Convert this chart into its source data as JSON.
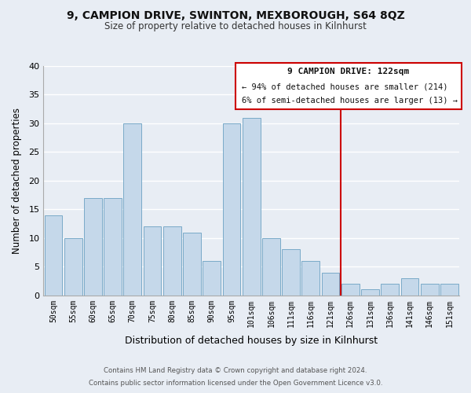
{
  "title1": "9, CAMPION DRIVE, SWINTON, MEXBOROUGH, S64 8QZ",
  "title2": "Size of property relative to detached houses in Kilnhurst",
  "xlabel": "Distribution of detached houses by size in Kilnhurst",
  "ylabel": "Number of detached properties",
  "categories": [
    "50sqm",
    "55sqm",
    "60sqm",
    "65sqm",
    "70sqm",
    "75sqm",
    "80sqm",
    "85sqm",
    "90sqm",
    "95sqm",
    "101sqm",
    "106sqm",
    "111sqm",
    "116sqm",
    "121sqm",
    "126sqm",
    "131sqm",
    "136sqm",
    "141sqm",
    "146sqm",
    "151sqm"
  ],
  "values": [
    14,
    10,
    17,
    17,
    30,
    12,
    12,
    11,
    6,
    30,
    31,
    10,
    8,
    6,
    4,
    2,
    1,
    2,
    3,
    2,
    2
  ],
  "bar_color": "#c5d8ea",
  "bar_edge_color": "#7aaac8",
  "grid_color": "#ffffff",
  "bg_color": "#e8edf4",
  "vline_x": 14,
  "vline_color": "#cc0000",
  "ylim": [
    0,
    40
  ],
  "yticks": [
    0,
    5,
    10,
    15,
    20,
    25,
    30,
    35,
    40
  ],
  "annotation_title": "9 CAMPION DRIVE: 122sqm",
  "annotation_line1": "← 94% of detached houses are smaller (214)",
  "annotation_line2": "6% of semi-detached houses are larger (13) →",
  "footer1": "Contains HM Land Registry data © Crown copyright and database right 2024.",
  "footer2": "Contains public sector information licensed under the Open Government Licence v3.0."
}
